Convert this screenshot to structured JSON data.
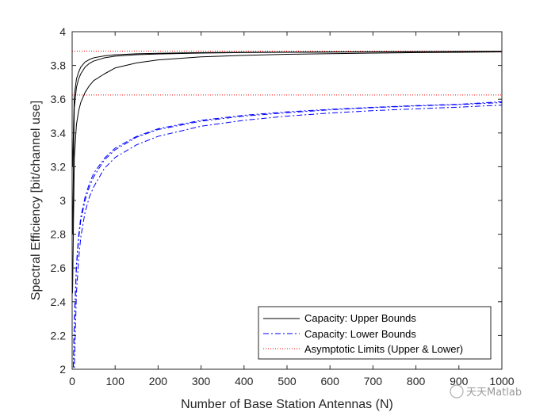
{
  "chart_data": {
    "type": "line",
    "title": "",
    "xlabel": "Number of Base Station Antennas (N)",
    "ylabel": "Spectral Efficiency [bit/channel use]",
    "xlim": [
      0,
      1000
    ],
    "ylim": [
      2,
      4
    ],
    "xticks": [
      "0",
      "100",
      "200",
      "300",
      "400",
      "500",
      "600",
      "700",
      "800",
      "900",
      "1000"
    ],
    "yticks": [
      "2",
      "2.2",
      "2.4",
      "2.6",
      "2.8",
      "3",
      "3.2",
      "3.4",
      "3.6",
      "3.8",
      "4"
    ],
    "grid": false,
    "legend_position": "bottom-right",
    "legend": [
      "Capacity: Upper Bounds",
      "Capacity: Lower Bounds",
      "Asymptotic Limits (Upper & Lower)"
    ],
    "colors": {
      "upper": "#000000",
      "lower": "#0000ff",
      "asymptote": "#ff0000"
    },
    "series": [
      {
        "group": "upper",
        "style": "solid",
        "x": [
          1,
          5,
          10,
          15,
          20,
          30,
          40,
          50,
          75,
          100,
          150,
          200,
          300,
          400,
          500,
          600,
          700,
          800,
          900,
          1000
        ],
        "y": [
          2.8,
          3.55,
          3.67,
          3.72,
          3.75,
          3.79,
          3.812,
          3.826,
          3.845,
          3.855,
          3.864,
          3.868,
          3.873,
          3.876,
          3.878,
          3.879,
          3.88,
          3.881,
          3.882,
          3.882
        ]
      },
      {
        "group": "upper",
        "style": "solid",
        "x": [
          1,
          5,
          10,
          15,
          20,
          30,
          40,
          50,
          75,
          100,
          150,
          200,
          300,
          400,
          500,
          600,
          700,
          800,
          900,
          1000
        ],
        "y": [
          3.2,
          3.62,
          3.72,
          3.76,
          3.79,
          3.82,
          3.835,
          3.845,
          3.857,
          3.863,
          3.869,
          3.872,
          3.876,
          3.878,
          3.879,
          3.88,
          3.881,
          3.882,
          3.883,
          3.884
        ]
      },
      {
        "group": "upper",
        "style": "solid",
        "x": [
          1,
          5,
          10,
          15,
          20,
          30,
          40,
          50,
          75,
          100,
          150,
          200,
          300,
          400,
          500,
          600,
          700,
          800,
          900,
          1000
        ],
        "y": [
          2.45,
          3.25,
          3.45,
          3.53,
          3.58,
          3.64,
          3.68,
          3.71,
          3.75,
          3.785,
          3.815,
          3.833,
          3.851,
          3.86,
          3.866,
          3.87,
          3.873,
          3.876,
          3.878,
          3.88
        ]
      },
      {
        "group": "lower",
        "style": "dashdot",
        "x": [
          1,
          5,
          10,
          15,
          20,
          30,
          40,
          50,
          75,
          100,
          150,
          200,
          300,
          400,
          500,
          600,
          700,
          800,
          900,
          1000
        ],
        "y": [
          1.8,
          2.3,
          2.62,
          2.79,
          2.9,
          3.02,
          3.1,
          3.16,
          3.25,
          3.31,
          3.38,
          3.425,
          3.475,
          3.505,
          3.525,
          3.54,
          3.552,
          3.562,
          3.57,
          3.585
        ]
      },
      {
        "group": "lower",
        "style": "dashdot",
        "x": [
          1,
          5,
          10,
          15,
          20,
          30,
          40,
          50,
          75,
          100,
          150,
          200,
          300,
          400,
          500,
          600,
          700,
          800,
          900,
          1000
        ],
        "y": [
          1.8,
          2.25,
          2.6,
          2.77,
          2.88,
          3.0,
          3.08,
          3.14,
          3.24,
          3.3,
          3.375,
          3.42,
          3.47,
          3.5,
          3.52,
          3.537,
          3.55,
          3.56,
          3.568,
          3.58
        ]
      },
      {
        "group": "lower",
        "style": "dashdot",
        "x": [
          1,
          5,
          10,
          15,
          20,
          30,
          40,
          50,
          75,
          100,
          150,
          200,
          300,
          400,
          500,
          600,
          700,
          800,
          900,
          1000
        ],
        "y": [
          1.75,
          2.0,
          2.45,
          2.65,
          2.78,
          2.93,
          3.02,
          3.08,
          3.19,
          3.255,
          3.33,
          3.38,
          3.44,
          3.475,
          3.5,
          3.518,
          3.532,
          3.543,
          3.553,
          3.565
        ]
      }
    ],
    "asymptotes": [
      3.885,
      3.625
    ]
  },
  "watermark": {
    "text": "天天Matlab"
  }
}
